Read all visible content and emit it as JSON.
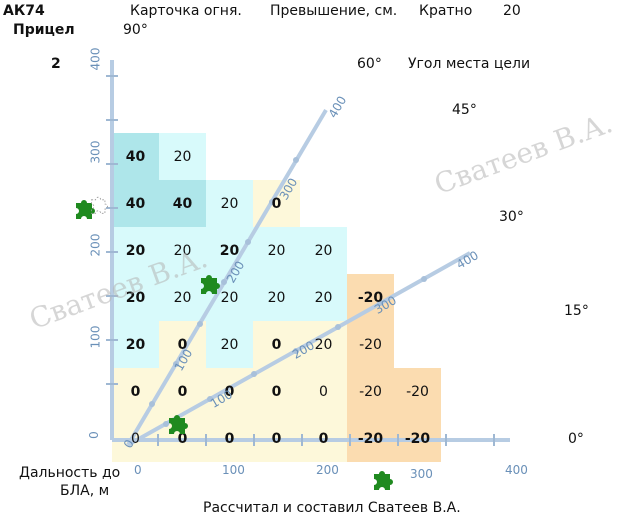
{
  "header": {
    "weapon": "АК74",
    "card_title": "Карточка огня.",
    "excess_label": "Превышение, см.",
    "multiple_label": "Кратно",
    "multiple_value": "20",
    "sight_label": "Прицел",
    "sight_value": "2"
  },
  "angles": {
    "a90": "90°",
    "a60": "60°",
    "a45": "45°",
    "a30": "30°",
    "a15": "15°",
    "a0": "0°",
    "angle_label": "Угол места цели"
  },
  "x_axis": {
    "label_line1": "Дальность до",
    "label_line2": "БЛА, м",
    "ticks": [
      "0",
      "100",
      "200",
      "300",
      "400"
    ]
  },
  "y_axis": {
    "ticks": [
      "0",
      "100",
      "200",
      "300",
      "400"
    ]
  },
  "ray60_ticks": [
    "0",
    "100",
    "200",
    "300",
    "400"
  ],
  "ray30_ticks": [
    "100",
    "200",
    "300",
    "400"
  ],
  "watermark": "Сватеев В.А.",
  "footer": "Рассчитал и составил Сватеев В.А.",
  "grid": [
    [
      "40",
      "20",
      "",
      "",
      "",
      "",
      ""
    ],
    [
      "40",
      "40",
      "20",
      "0",
      "",
      "",
      ""
    ],
    [
      "20",
      "20",
      "20",
      "20",
      "20",
      "",
      ""
    ],
    [
      "20",
      "20",
      "20",
      "20",
      "20",
      "-20",
      ""
    ],
    [
      "20",
      "0",
      "20",
      "0",
      "20",
      "-20",
      ""
    ],
    [
      "0",
      "0",
      "0",
      "0",
      "0",
      "-20",
      "-20"
    ],
    [
      "0",
      "0",
      "0",
      "0",
      "0",
      "-20",
      "-20"
    ]
  ],
  "colors": {
    "cyan_dark": "#aee6ea",
    "cyan_light": "#d8fafb",
    "yellow": "#fdf8da",
    "orange": "#fbdcb0",
    "axis": "#b7cce3",
    "puzzle": "#1f8a1f"
  }
}
